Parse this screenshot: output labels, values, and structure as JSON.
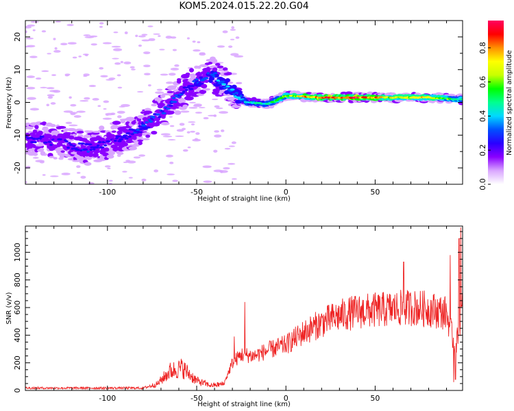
{
  "title": "KOM5.2024.015.22.20.G04",
  "chart_data": [
    {
      "type": "heatmap",
      "xlabel": "Height of straight line (km)",
      "ylabel": "Frequency (Hz)",
      "xlim": [
        -146,
        99
      ],
      "ylim": [
        -25,
        25
      ],
      "x_ticks": [
        -100,
        -50,
        0,
        50
      ],
      "y_ticks": [
        -20,
        -10,
        0,
        10,
        20
      ],
      "colorbar": {
        "label": "Normalized spectral amplitude",
        "range": [
          0,
          0.96
        ],
        "ticks": [
          "0.0",
          "0.2",
          "0.4",
          "0.6",
          "0.8"
        ],
        "colormap": [
          "#ffffff",
          "#d9a6ff",
          "#8a00ff",
          "#2a00ff",
          "#0050ff",
          "#00d8ff",
          "#00ff90",
          "#00ff00",
          "#c8ff00",
          "#ffff00",
          "#ff9000",
          "#ff0000",
          "#ff0060"
        ]
      },
      "ridge": [
        {
          "x": -140,
          "y": -11,
          "a": 0.22
        },
        {
          "x": -130,
          "y": -12,
          "a": 0.2
        },
        {
          "x": -120,
          "y": -13,
          "a": 0.24
        },
        {
          "x": -110,
          "y": -14,
          "a": 0.26
        },
        {
          "x": -100,
          "y": -12,
          "a": 0.22
        },
        {
          "x": -90,
          "y": -10,
          "a": 0.24
        },
        {
          "x": -80,
          "y": -8,
          "a": 0.28
        },
        {
          "x": -70,
          "y": -3,
          "a": 0.26
        },
        {
          "x": -60,
          "y": 2,
          "a": 0.28
        },
        {
          "x": -50,
          "y": 6,
          "a": 0.28
        },
        {
          "x": -42,
          "y": 9,
          "a": 0.3
        },
        {
          "x": -35,
          "y": 6,
          "a": 0.36
        },
        {
          "x": -28,
          "y": 2,
          "a": 0.36
        },
        {
          "x": -22,
          "y": 0,
          "a": 0.42
        },
        {
          "x": -10,
          "y": -0.5,
          "a": 0.46
        },
        {
          "x": 0,
          "y": 2,
          "a": 0.6
        },
        {
          "x": 10,
          "y": 1.8,
          "a": 0.72
        },
        {
          "x": 20,
          "y": 1.5,
          "a": 0.82
        },
        {
          "x": 35,
          "y": 1.5,
          "a": 0.86
        },
        {
          "x": 50,
          "y": 1.5,
          "a": 0.8
        },
        {
          "x": 65,
          "y": 1.5,
          "a": 0.62
        },
        {
          "x": 80,
          "y": 1.5,
          "a": 0.7
        },
        {
          "x": 95,
          "y": 1,
          "a": 0.5
        }
      ]
    },
    {
      "type": "line",
      "xlabel": "Height of straight line (km)",
      "ylabel": "SNR (v/v)",
      "xlim": [
        -146,
        99
      ],
      "ylim": [
        0,
        1190
      ],
      "x_ticks": [
        -100,
        -50,
        0,
        50
      ],
      "y_ticks": [
        0,
        200,
        400,
        600,
        800,
        1000
      ],
      "series": [
        {
          "color": "#ee2222",
          "envelope": [
            {
              "x": -146,
              "y": 15
            },
            {
              "x": -80,
              "y": 15
            },
            {
              "x": -72,
              "y": 40
            },
            {
              "x": -65,
              "y": 120
            },
            {
              "x": -58,
              "y": 140
            },
            {
              "x": -50,
              "y": 60
            },
            {
              "x": -42,
              "y": 30
            },
            {
              "x": -35,
              "y": 40
            },
            {
              "x": -30,
              "y": 200
            },
            {
              "x": -25,
              "y": 260
            },
            {
              "x": -18,
              "y": 250
            },
            {
              "x": -10,
              "y": 290
            },
            {
              "x": 0,
              "y": 330
            },
            {
              "x": 10,
              "y": 420
            },
            {
              "x": 20,
              "y": 490
            },
            {
              "x": 30,
              "y": 540
            },
            {
              "x": 40,
              "y": 570
            },
            {
              "x": 50,
              "y": 580
            },
            {
              "x": 60,
              "y": 590
            },
            {
              "x": 70,
              "y": 600
            },
            {
              "x": 80,
              "y": 590
            },
            {
              "x": 90,
              "y": 560
            },
            {
              "x": 95,
              "y": 300
            },
            {
              "x": 99,
              "y": 600
            }
          ],
          "spikes": [
            {
              "x": -23,
              "y": 640
            },
            {
              "x": -29,
              "y": 390
            },
            {
              "x": 66,
              "y": 930
            },
            {
              "x": 92,
              "y": 980
            },
            {
              "x": 98,
              "y": 1180
            },
            {
              "x": 97,
              "y": 1100
            },
            {
              "x": 94,
              "y": 60
            },
            {
              "x": 95,
              "y": 80
            }
          ]
        }
      ]
    }
  ]
}
